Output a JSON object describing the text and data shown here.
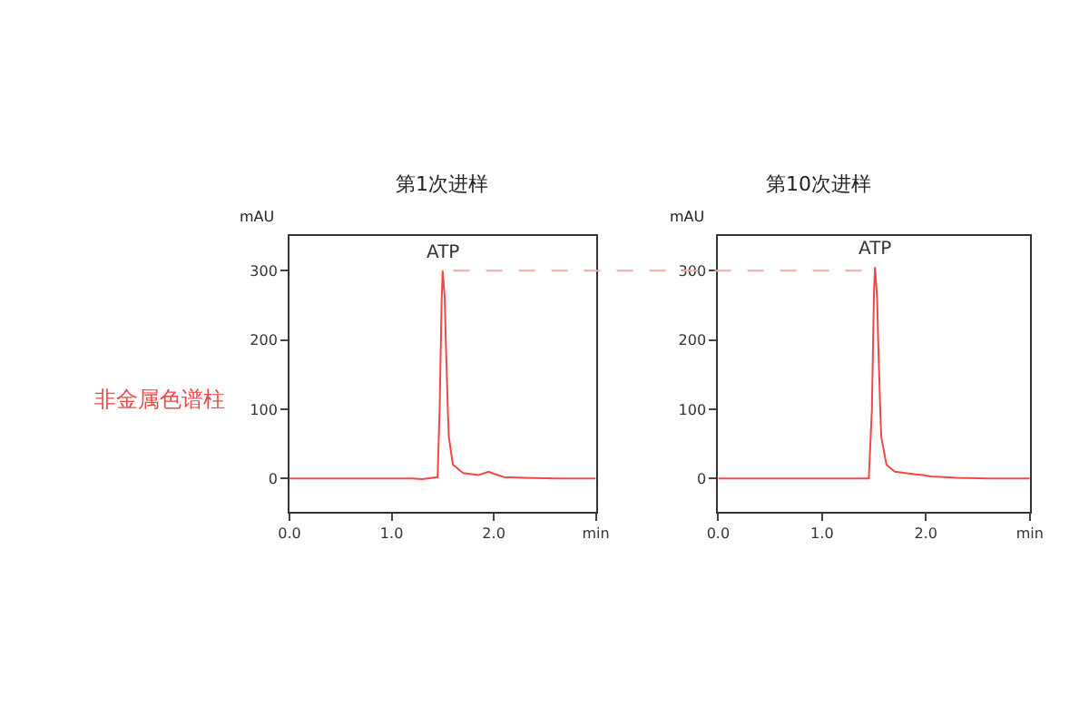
{
  "chart_data": [
    {
      "type": "line",
      "title": "第1次进样",
      "ylabel": "mAU",
      "x": [
        0,
        0.5,
        1.0,
        1.2,
        1.3,
        1.45,
        1.47,
        1.49,
        1.5,
        1.52,
        1.53,
        1.55,
        1.56,
        1.6,
        1.7,
        1.85,
        1.95,
        2.0,
        2.1,
        2.3,
        2.6,
        3.0
      ],
      "series": [
        {
          "color": "#f04848",
          "values": [
            0,
            0,
            0,
            0,
            -1,
            2,
            100,
            260,
            300,
            260,
            200,
            100,
            60,
            20,
            8,
            5,
            10,
            7,
            2,
            1,
            0,
            0
          ]
        }
      ],
      "xlim": [
        0,
        3
      ],
      "xticks": [
        {
          "value": 0,
          "label": "0.0"
        },
        {
          "value": 1,
          "label": "1.0"
        },
        {
          "value": 2,
          "label": "2.0"
        },
        {
          "value": 3,
          "label": "min"
        }
      ],
      "ylim": [
        -48,
        350
      ],
      "yticks": [
        0,
        100,
        200,
        300
      ],
      "ref_lines": [
        {
          "axis": "y",
          "value": 300,
          "color": "#f4a8a8",
          "line_style": "dashed"
        }
      ],
      "annotations": [
        {
          "text": "ATP",
          "x": 1.5,
          "y": 300
        },
        "非金属色谱柱"
      ]
    },
    {
      "type": "line",
      "title": "第10次进样",
      "ylabel": "mAU",
      "x": [
        0,
        0.5,
        1.0,
        1.45,
        1.48,
        1.5,
        1.51,
        1.53,
        1.54,
        1.56,
        1.57,
        1.62,
        1.7,
        1.9,
        1.97,
        2.05,
        2.3,
        2.6,
        3.0
      ],
      "series": [
        {
          "color": "#f04848",
          "values": [
            0,
            0,
            0,
            0,
            100,
            270,
            305,
            260,
            200,
            100,
            60,
            20,
            10,
            6,
            5,
            3,
            1,
            0,
            0
          ]
        }
      ],
      "xlim": [
        0,
        3
      ],
      "xticks": [
        {
          "value": 0,
          "label": "0.0"
        },
        {
          "value": 1,
          "label": "1.0"
        },
        {
          "value": 2,
          "label": "2.0"
        },
        {
          "value": 3,
          "label": "min"
        }
      ],
      "ylim": [
        -48,
        350
      ],
      "yticks": [
        0,
        100,
        200,
        300
      ],
      "annotations": [
        {
          "text": "ATP",
          "x": 1.5,
          "y": 305
        }
      ]
    }
  ]
}
